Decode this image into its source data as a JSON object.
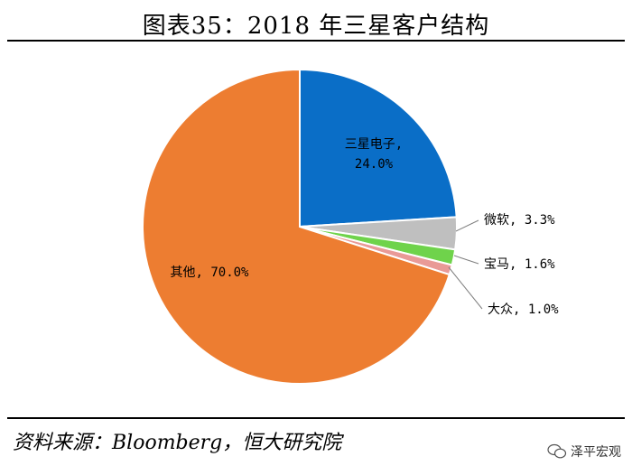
{
  "header": {
    "title": "图表35：2018 年三星客户结构"
  },
  "footer": {
    "source": "资料来源：Bloomberg，恒大研究院"
  },
  "watermark": {
    "text": "泽平宏观",
    "icon": "wechat-icon"
  },
  "chart_data": {
    "type": "pie",
    "title": "图表35：2018 年三星客户结构",
    "start_angle_deg": 0,
    "direction": "clockwise",
    "slices": [
      {
        "name": "三星电子",
        "value": 24.0,
        "label_line1": "三星电子,",
        "label_line2": "24.0%",
        "color": "#0A6EC7"
      },
      {
        "name": "微软",
        "value": 3.3,
        "label": "微软, 3.3%",
        "color": "#BFBFBF"
      },
      {
        "name": "宝马",
        "value": 1.6,
        "label": "宝马, 1.6%",
        "color": "#6FD34B"
      },
      {
        "name": "大众",
        "value": 1.0,
        "label": "大众, 1.0%",
        "color": "#E99A97"
      },
      {
        "name": "其他",
        "value": 70.0,
        "label": "其他, 70.0%",
        "color": "#ED7D31"
      }
    ]
  }
}
